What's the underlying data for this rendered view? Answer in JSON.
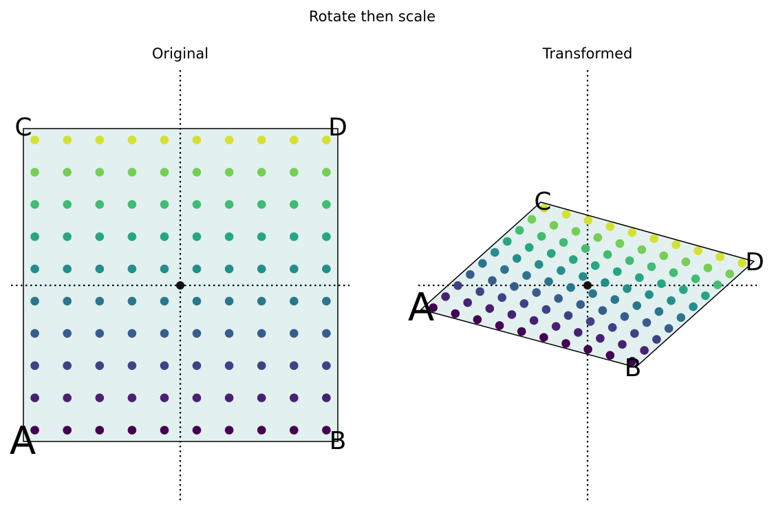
{
  "figure": {
    "title": "Rotate then scale"
  },
  "panels": [
    {
      "id": "original",
      "title": "Original",
      "corner_labels": [
        {
          "name": "A",
          "color": "#ff0000"
        },
        {
          "name": "B",
          "color": "#000000"
        },
        {
          "name": "C",
          "color": "#000000"
        },
        {
          "name": "D",
          "color": "#000000"
        }
      ],
      "grid": {
        "rows": 10,
        "cols": 10
      },
      "fill_color": "#e3f0f0",
      "colormap": "viridis"
    },
    {
      "id": "transformed",
      "title": "Transformed",
      "corner_labels": [
        {
          "name": "A",
          "color": "#ff0000"
        },
        {
          "name": "B",
          "color": "#000000"
        },
        {
          "name": "C",
          "color": "#000000"
        },
        {
          "name": "D",
          "color": "#000000"
        }
      ],
      "grid": {
        "rows": 10,
        "cols": 10
      },
      "fill_color": "#e3f0f0",
      "colormap": "viridis"
    }
  ]
}
